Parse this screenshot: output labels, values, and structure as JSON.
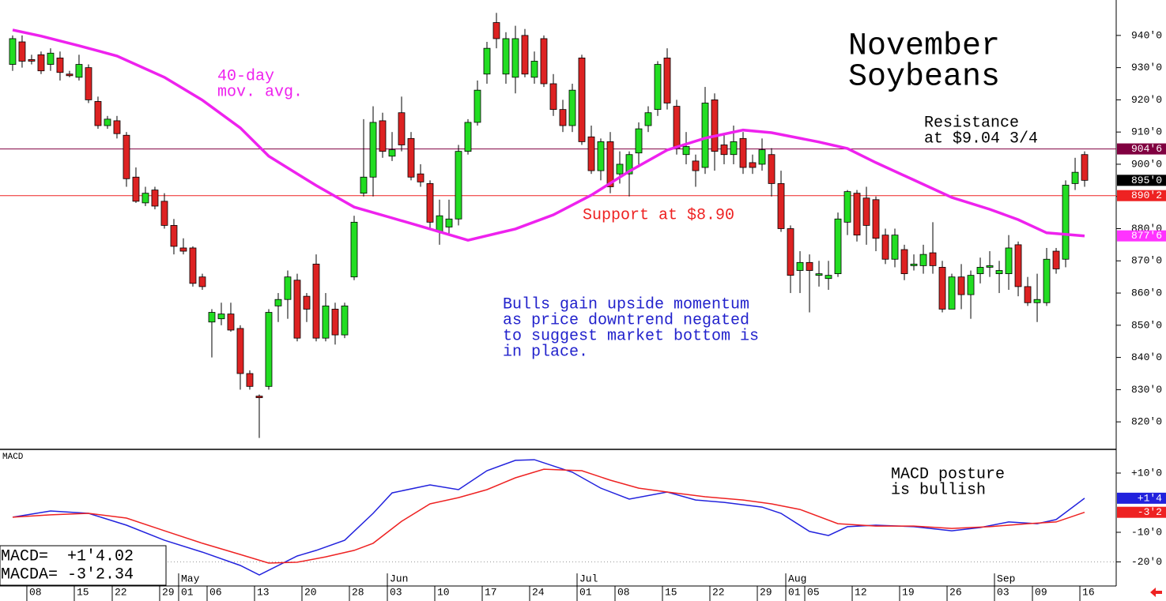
{
  "chart_data": [
    {
      "type": "candlestick",
      "title_lines": [
        "November",
        "Soybeans"
      ],
      "annotations": [
        {
          "lines": [
            "40-day",
            "mov. avg."
          ],
          "color": "#ee22ee"
        },
        {
          "lines": [
            "Resistance",
            "at $9.04 3/4"
          ],
          "color": "#000000"
        },
        {
          "lines": [
            "Support at $8.90"
          ],
          "color": "#ee2222"
        },
        {
          "lines": [
            "Bulls gain upside momentum",
            "as price downtrend negated",
            "to suggest market bottom is",
            "in place."
          ],
          "color": "#2222cc"
        }
      ],
      "categories": [
        null,
        null,
        "08",
        null,
        null,
        null,
        null,
        "15",
        null,
        null,
        null,
        "22",
        null,
        null,
        null,
        null,
        "29",
        null,
        "01",
        null,
        null,
        "06",
        null,
        null,
        null,
        null,
        "13",
        null,
        null,
        null,
        null,
        "20",
        null,
        null,
        null,
        null,
        "28",
        null,
        null,
        null,
        "03",
        null,
        null,
        null,
        null,
        "10",
        null,
        null,
        null,
        null,
        "17",
        null,
        null,
        null,
        null,
        "24",
        null,
        null,
        null,
        null,
        "01",
        null,
        null,
        null,
        "08",
        null,
        null,
        null,
        null,
        "15",
        null,
        null,
        null,
        null,
        "22",
        null,
        null,
        null,
        null,
        "29",
        null,
        null,
        "01",
        null,
        "05",
        null,
        null,
        null,
        null,
        "12",
        null,
        null,
        null,
        null,
        "19",
        null,
        null,
        null,
        null,
        "26",
        null,
        null,
        null,
        null,
        "03",
        null,
        null,
        null,
        "09",
        null,
        null,
        null,
        null,
        "16"
      ],
      "months": [
        null,
        null,
        null,
        null,
        null,
        null,
        null,
        null,
        null,
        null,
        null,
        null,
        null,
        null,
        null,
        null,
        null,
        null,
        "May",
        null,
        null,
        null,
        null,
        null,
        null,
        null,
        null,
        null,
        null,
        null,
        null,
        null,
        null,
        null,
        null,
        null,
        null,
        null,
        null,
        null,
        "Jun",
        null,
        null,
        null,
        null,
        null,
        null,
        null,
        null,
        null,
        null,
        null,
        null,
        null,
        null,
        null,
        null,
        null,
        null,
        null,
        "Jul",
        null,
        null,
        null,
        null,
        null,
        null,
        null,
        null,
        null,
        null,
        null,
        null,
        null,
        null,
        null,
        null,
        null,
        null,
        null,
        null,
        null,
        "Aug",
        null,
        null,
        null,
        null,
        null,
        null,
        null,
        null,
        null,
        null,
        null,
        null,
        null,
        null,
        null,
        null,
        null,
        null,
        null,
        null,
        null,
        "Sep",
        null,
        null,
        null,
        null,
        null,
        null,
        null,
        null,
        null
      ],
      "open": [
        931,
        938,
        932.5,
        934,
        931,
        933,
        928,
        927,
        930,
        919.5,
        912,
        913.5,
        909,
        896,
        888,
        892,
        888.5,
        881,
        874,
        874,
        865,
        851,
        852,
        853.5,
        849,
        835,
        828,
        831,
        856,
        858,
        864,
        859,
        869,
        846,
        855,
        847,
        865,
        891,
        896,
        913.5,
        902.5,
        916,
        908,
        897,
        894,
        879,
        880.5,
        883,
        904,
        913,
        928,
        944,
        928,
        927,
        940,
        927,
        939,
        925,
        917,
        912,
        933,
        908.5,
        898,
        907,
        897,
        897,
        903.5,
        912,
        917,
        933,
        918,
        903,
        901,
        899,
        920,
        906,
        903,
        908,
        900.5,
        900,
        903,
        894,
        880,
        867,
        869.5,
        865.5,
        864.5,
        866,
        882,
        891,
        889.5,
        889,
        878,
        870.5,
        873.5,
        868.5,
        868.5,
        872.5,
        868,
        855,
        865,
        859.5,
        866,
        868,
        866,
        866,
        875,
        862,
        857,
        857,
        873,
        870.5,
        894,
        903
      ],
      "high": [
        940,
        940,
        934,
        935,
        936,
        935,
        929,
        934,
        931,
        921,
        915,
        915,
        910,
        899,
        893,
        893,
        891,
        883,
        877,
        874.5,
        866,
        855,
        857,
        857,
        850,
        836,
        828.5,
        855,
        860,
        867,
        866,
        860,
        872,
        860,
        857,
        857,
        884,
        914,
        918,
        916,
        910,
        921,
        910,
        900,
        895,
        889,
        889,
        906,
        914,
        926,
        938,
        947,
        941,
        943,
        942,
        935,
        940,
        928,
        920,
        925,
        934,
        912,
        908,
        910,
        904,
        904,
        913,
        918,
        932,
        936,
        920,
        910,
        903,
        924,
        922,
        909,
        912,
        910,
        903,
        908,
        905,
        898,
        881,
        873,
        872,
        870,
        870,
        885,
        892,
        892,
        893,
        890,
        880,
        880,
        875,
        872,
        875,
        882,
        870,
        866,
        869,
        867,
        871,
        873,
        870,
        878,
        876,
        865,
        866,
        874,
        874,
        895,
        902,
        904
      ],
      "low": [
        929,
        930,
        931,
        928,
        929,
        926,
        927,
        926,
        919,
        911,
        911,
        908,
        893,
        888,
        887,
        886,
        880,
        872,
        872,
        862,
        861,
        840,
        850,
        848,
        830,
        830,
        815,
        830,
        851,
        852,
        845,
        851,
        845,
        845,
        844,
        846,
        864,
        890,
        890,
        902,
        901,
        904,
        895,
        893,
        880,
        875,
        878,
        881,
        903,
        912,
        925,
        936,
        925,
        922,
        927,
        925,
        924,
        915,
        910,
        910,
        906,
        897,
        895,
        891,
        894,
        890,
        899,
        910,
        915,
        917,
        903,
        900,
        893,
        897,
        898,
        900,
        900,
        897,
        897,
        898,
        890,
        879,
        860,
        860,
        854,
        862,
        861,
        865,
        878,
        876,
        875,
        873,
        869,
        868,
        864,
        867,
        866,
        866,
        854,
        855,
        855,
        852,
        863,
        865,
        860,
        861,
        859,
        856,
        851,
        856,
        866,
        868,
        892,
        893
      ],
      "close": [
        939,
        932,
        932,
        929,
        934.5,
        928.5,
        927.5,
        931,
        920,
        912,
        914,
        909.5,
        895.5,
        888.5,
        891,
        887,
        881,
        874.5,
        873,
        863,
        862,
        854,
        853.5,
        848.5,
        835,
        831,
        827.5,
        854,
        858,
        865,
        846,
        855,
        846,
        856,
        847,
        856,
        882,
        896,
        913,
        904,
        904.5,
        906,
        896,
        894.5,
        882,
        884,
        883,
        904,
        913,
        923,
        936,
        939,
        939,
        939,
        928,
        932,
        925,
        917,
        912,
        923,
        907,
        898,
        907,
        893,
        900,
        903,
        911,
        916,
        931,
        919,
        905,
        905.5,
        898,
        919,
        904,
        903,
        907,
        899,
        899,
        904.5,
        894,
        880,
        865.5,
        869.5,
        867,
        866,
        865.5,
        883,
        891.5,
        878,
        881,
        877,
        870.5,
        878,
        866,
        869,
        872,
        868.5,
        855,
        865,
        859.5,
        865.5,
        868,
        868.5,
        867,
        874,
        862,
        857,
        858,
        870.5,
        867.5,
        893.5,
        897.5,
        895
      ],
      "up_color": "#22dd22",
      "down_color": "#dd2222",
      "moving_average": {
        "color": "#ee22ee",
        "x": [
          0,
          3,
          7,
          11,
          16,
          20,
          24,
          27,
          32,
          36,
          40,
          44,
          48,
          53,
          57,
          61,
          65,
          69,
          73,
          77,
          80,
          85,
          88,
          91,
          95,
          99,
          103,
          106,
          109,
          111,
          113
        ],
        "values": [
          941.7,
          939.8,
          936.8,
          933.6,
          927,
          919.9,
          911.3,
          902.5,
          893.4,
          886.7,
          883.3,
          879.9,
          876.4,
          879.9,
          884.3,
          890.4,
          897.8,
          904.4,
          908.1,
          910.6,
          909.8,
          906.9,
          904.9,
          900.5,
          895.1,
          889.7,
          886,
          882.8,
          878.7,
          878.2,
          877.75
        ]
      },
      "levels": [
        {
          "value": 904.75,
          "label": "904'6",
          "color": "#800040",
          "line": true
        },
        {
          "value": 895,
          "label": "895'0",
          "color": "#000000",
          "line": false
        },
        {
          "value": 890.25,
          "label": "890'2",
          "color": "#ee2222",
          "line": true
        },
        {
          "value": 877.75,
          "label": "877'6",
          "color": "#ff33ff",
          "line": false
        }
      ],
      "xlim": [
        -1.33,
        116.33
      ],
      "ylim": [
        811.7,
        951
      ],
      "yticks": [
        {
          "value": 820,
          "label": "820'0"
        },
        {
          "value": 830,
          "label": "830'0"
        },
        {
          "value": 840,
          "label": "840'0"
        },
        {
          "value": 850,
          "label": "850'0"
        },
        {
          "value": 860,
          "label": "860'0"
        },
        {
          "value": 870,
          "label": "870'0"
        },
        {
          "value": 880,
          "label": "880'0"
        },
        {
          "value": 890,
          "label": "890'0"
        },
        {
          "value": 900,
          "label": "900'0"
        },
        {
          "value": 910,
          "label": "910'0"
        },
        {
          "value": 920,
          "label": "920'0"
        },
        {
          "value": 930,
          "label": "930'0"
        },
        {
          "value": 940,
          "label": "940'0"
        }
      ]
    },
    {
      "type": "line",
      "title": "MACD",
      "annotation": [
        "MACD posture",
        "is bullish"
      ],
      "readouts": [
        "MACD=  +1'4.02",
        "MACDA= -3'2.34"
      ],
      "xlim": [
        -1.33,
        116.33
      ],
      "ylim": [
        -27.6,
        17.73
      ],
      "yticks": [
        {
          "value": 10,
          "label": "+10'0"
        },
        {
          "value": -10,
          "label": "-10'0"
        },
        {
          "value": -20,
          "label": "-20'0"
        }
      ],
      "series": [
        {
          "color": "#2222dd",
          "x": [
            0,
            4,
            8,
            12,
            16,
            20,
            24,
            26,
            30,
            32,
            35,
            38,
            40,
            44,
            47,
            50,
            53,
            55,
            59,
            62,
            65,
            69,
            72,
            75,
            79,
            81,
            84,
            86,
            88,
            91,
            95,
            99,
            102,
            105,
            108,
            110,
            113
          ],
          "values": [
            -4.9,
            -2.8,
            -3.6,
            -7.6,
            -12.7,
            -16.7,
            -21.2,
            -24.4,
            -18,
            -16.1,
            -12.7,
            -3.6,
            3.3,
            6,
            4.4,
            10.8,
            14.3,
            14.5,
            10.3,
            4.9,
            1.2,
            3.6,
            0.9,
            0.1,
            -1.5,
            -3.6,
            -9.7,
            -11.1,
            -8.1,
            -7.6,
            -8.1,
            -9.5,
            -8.4,
            -6.5,
            -7.1,
            -5.7,
            1.5
          ]
        },
        {
          "color": "#ee2222",
          "x": [
            0,
            4,
            8,
            12,
            16,
            20,
            24,
            27,
            30,
            33,
            36,
            38,
            41,
            44,
            47,
            50,
            53,
            56,
            60,
            63,
            66,
            69,
            73,
            77,
            80,
            83,
            87,
            91,
            95,
            99,
            103,
            107,
            110,
            113
          ],
          "values": [
            -4.9,
            -4.1,
            -3.6,
            -5.2,
            -9.5,
            -13.7,
            -17.5,
            -20.4,
            -20.1,
            -18.3,
            -16.1,
            -13.7,
            -6.3,
            -0.4,
            1.7,
            4.4,
            8.4,
            11.3,
            10.8,
            7.6,
            4.9,
            3.6,
            2,
            0.9,
            -0.4,
            -2.3,
            -7.1,
            -7.9,
            -7.9,
            -8.7,
            -8.1,
            -7.1,
            -6.5,
            -3.25
          ]
        }
      ],
      "markers": [
        {
          "value": 1.5,
          "label": "+1'4",
          "color": "#2222dd"
        },
        {
          "value": -3.25,
          "label": "-3'2",
          "color": "#ee2222"
        }
      ]
    }
  ]
}
